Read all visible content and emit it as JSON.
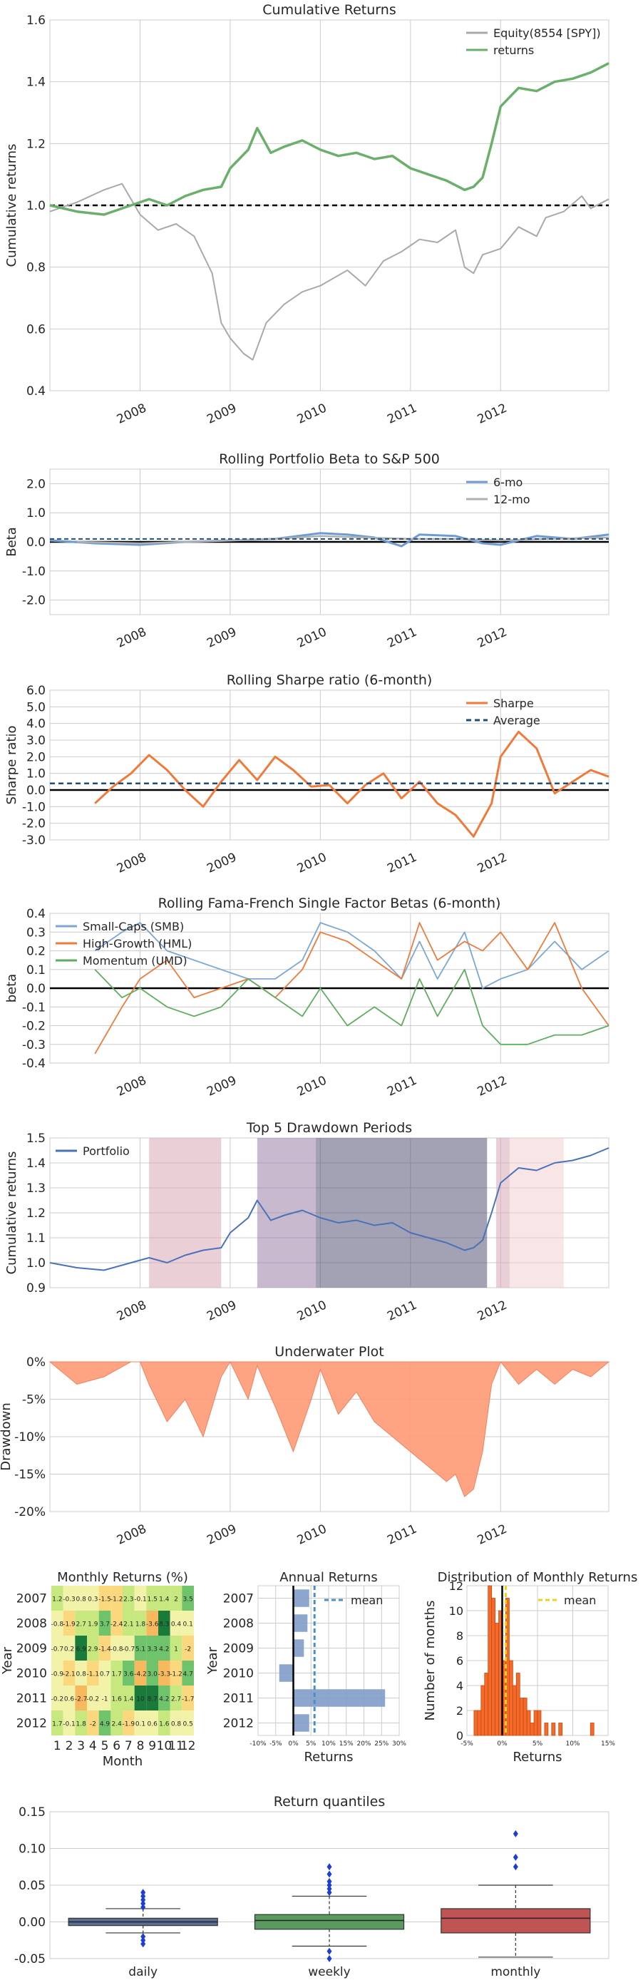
{
  "colors": {
    "equity": "#a9a9a9",
    "returns": "#6aaf6a",
    "beta6": "#6f9bd1",
    "beta12": "#b0b0b0",
    "sharpe": "#f07a3a",
    "average": "#1f4e79",
    "smb": "#7ba7d6",
    "hml": "#f07a3a",
    "umd": "#5fae5f",
    "portfolio": "#4a72b8",
    "underwater": "#ff9a76",
    "grid": "#cccccc",
    "dd1": "#d8a8b4",
    "dd2": "#9a7fa8",
    "dd3": "#555577",
    "dd4": "#d8a8b4",
    "dd5": "#f2d0d0"
  },
  "chart_data": [
    {
      "id": "cumulative",
      "type": "line",
      "title": "Cumulative Returns",
      "ylabel": "Cumulative returns",
      "ylim": [
        0.4,
        1.6
      ],
      "yticks": [
        "0.4",
        "0.6",
        "0.8",
        "1.0",
        "1.2",
        "1.4",
        "1.6"
      ],
      "xticks": [
        "2008",
        "2009",
        "2010",
        "2011",
        "2012"
      ],
      "legend": [
        "Equity(8554 [SPY])",
        "returns"
      ],
      "series": [
        {
          "name": "Equity(8554 [SPY])",
          "x": [
            2007.0,
            2007.3,
            2007.6,
            2007.8,
            2008.0,
            2008.2,
            2008.4,
            2008.6,
            2008.8,
            2008.9,
            2009.0,
            2009.15,
            2009.25,
            2009.4,
            2009.6,
            2009.8,
            2010.0,
            2010.3,
            2010.5,
            2010.7,
            2010.9,
            2011.1,
            2011.3,
            2011.5,
            2011.6,
            2011.7,
            2011.8,
            2012.0,
            2012.2,
            2012.4,
            2012.5,
            2012.7,
            2012.9,
            2013.0,
            2013.2
          ],
          "y": [
            0.98,
            1.01,
            1.05,
            1.07,
            0.97,
            0.92,
            0.94,
            0.9,
            0.78,
            0.62,
            0.57,
            0.52,
            0.5,
            0.62,
            0.68,
            0.72,
            0.74,
            0.79,
            0.74,
            0.82,
            0.85,
            0.89,
            0.88,
            0.92,
            0.8,
            0.78,
            0.84,
            0.86,
            0.93,
            0.9,
            0.96,
            0.98,
            1.03,
            0.99,
            1.02
          ]
        },
        {
          "name": "returns",
          "x": [
            2007.0,
            2007.3,
            2007.6,
            2007.9,
            2008.1,
            2008.3,
            2008.5,
            2008.7,
            2008.9,
            2009.0,
            2009.2,
            2009.3,
            2009.45,
            2009.6,
            2009.8,
            2010.0,
            2010.2,
            2010.4,
            2010.6,
            2010.8,
            2011.0,
            2011.2,
            2011.4,
            2011.6,
            2011.7,
            2011.8,
            2011.9,
            2012.0,
            2012.2,
            2012.4,
            2012.6,
            2012.8,
            2013.0,
            2013.2
          ],
          "y": [
            1.0,
            0.98,
            0.97,
            1.0,
            1.02,
            1.0,
            1.03,
            1.05,
            1.06,
            1.12,
            1.18,
            1.25,
            1.17,
            1.19,
            1.21,
            1.18,
            1.16,
            1.17,
            1.15,
            1.16,
            1.12,
            1.1,
            1.08,
            1.05,
            1.06,
            1.09,
            1.2,
            1.32,
            1.38,
            1.37,
            1.4,
            1.41,
            1.43,
            1.46
          ]
        }
      ],
      "hline": 1.0
    },
    {
      "id": "beta",
      "type": "line",
      "title": "Rolling Portfolio Beta to S&P 500",
      "ylabel": "Beta",
      "ylim": [
        -2.5,
        2.5
      ],
      "yticks": [
        "-2.0",
        "-1.0",
        "0.0",
        "1.0",
        "2.0"
      ],
      "xticks": [
        "2008",
        "2009",
        "2010",
        "2011",
        "2012"
      ],
      "legend": [
        "6-mo",
        "12-mo"
      ],
      "series": [
        {
          "name": "6-mo",
          "x": [
            2007.0,
            2007.5,
            2008.0,
            2008.5,
            2009.0,
            2009.5,
            2010.0,
            2010.3,
            2010.6,
            2010.9,
            2011.1,
            2011.5,
            2011.8,
            2012.0,
            2012.4,
            2012.8,
            2013.2
          ],
          "y": [
            0.05,
            -0.05,
            -0.1,
            0.0,
            0.05,
            0.1,
            0.3,
            0.25,
            0.15,
            -0.15,
            0.25,
            0.2,
            -0.05,
            -0.1,
            0.2,
            0.1,
            0.25
          ]
        },
        {
          "name": "12-mo",
          "x": [
            2007.3,
            2008.0,
            2008.5,
            2009.0,
            2009.5,
            2010.0,
            2010.5,
            2011.0,
            2011.5,
            2012.0,
            2012.5,
            2013.2
          ],
          "y": [
            0.0,
            -0.05,
            0.0,
            0.05,
            0.1,
            0.2,
            0.15,
            0.1,
            0.1,
            0.05,
            0.1,
            0.15
          ]
        }
      ],
      "hline": 0.0,
      "dashline": 0.1
    },
    {
      "id": "sharpe",
      "type": "line",
      "title": "Rolling Sharpe ratio (6-month)",
      "ylabel": "Sharpe ratio",
      "ylim": [
        -3.0,
        6.0
      ],
      "yticks": [
        "-3.0",
        "-2.0",
        "-1.0",
        "0.0",
        "1.0",
        "2.0",
        "3.0",
        "4.0",
        "5.0",
        "6.0"
      ],
      "xticks": [
        "2008",
        "2009",
        "2010",
        "2011",
        "2012"
      ],
      "legend": [
        "Sharpe",
        "Average"
      ],
      "series": [
        {
          "name": "Sharpe",
          "x": [
            2007.5,
            2007.7,
            2007.9,
            2008.1,
            2008.3,
            2008.5,
            2008.7,
            2008.9,
            2009.1,
            2009.3,
            2009.5,
            2009.7,
            2009.9,
            2010.1,
            2010.3,
            2010.5,
            2010.7,
            2010.9,
            2011.1,
            2011.3,
            2011.5,
            2011.7,
            2011.9,
            2012.0,
            2012.2,
            2012.4,
            2012.6,
            2012.8,
            2013.0,
            2013.2
          ],
          "y": [
            -0.8,
            0.2,
            1.0,
            2.1,
            1.2,
            0.0,
            -1.0,
            0.5,
            1.8,
            0.6,
            2.0,
            1.2,
            0.2,
            0.3,
            -0.8,
            0.3,
            1.0,
            -0.5,
            0.5,
            -0.8,
            -1.5,
            -2.8,
            -0.8,
            2.0,
            3.5,
            2.5,
            -0.2,
            0.5,
            1.2,
            0.8
          ]
        },
        {
          "name": "Average",
          "x": [
            2007.0,
            2013.2
          ],
          "y": [
            0.4,
            0.4
          ]
        }
      ],
      "hline": 0.0
    },
    {
      "id": "famafrench",
      "type": "line",
      "title": "Rolling Fama-French Single Factor Betas (6-month)",
      "ylabel": "beta",
      "ylim": [
        -0.4,
        0.4
      ],
      "yticks": [
        "-0.4",
        "-0.3",
        "-0.2",
        "-0.1",
        "0.0",
        "0.1",
        "0.2",
        "0.3",
        "0.4"
      ],
      "xticks": [
        "2008",
        "2009",
        "2010",
        "2011",
        "2012"
      ],
      "legend": [
        "Small-Caps (SMB)",
        "High-Growth (HML)",
        "Momentum (UMD)"
      ],
      "series": [
        {
          "name": "Small-Caps (SMB)",
          "x": [
            2007.5,
            2007.8,
            2008.0,
            2008.3,
            2008.6,
            2008.9,
            2009.2,
            2009.5,
            2009.8,
            2010.0,
            2010.3,
            2010.6,
            2010.9,
            2011.1,
            2011.3,
            2011.6,
            2011.8,
            2012.0,
            2012.3,
            2012.6,
            2012.9,
            2013.2
          ],
          "y": [
            0.2,
            0.3,
            0.35,
            0.2,
            0.15,
            0.1,
            0.05,
            0.05,
            0.15,
            0.35,
            0.3,
            0.2,
            0.05,
            0.25,
            0.05,
            0.3,
            0.0,
            0.05,
            0.1,
            0.25,
            0.1,
            0.2
          ]
        },
        {
          "name": "High-Growth (HML)",
          "x": [
            2007.5,
            2007.8,
            2008.0,
            2008.3,
            2008.6,
            2008.9,
            2009.2,
            2009.5,
            2009.8,
            2010.0,
            2010.3,
            2010.6,
            2010.9,
            2011.1,
            2011.3,
            2011.6,
            2011.8,
            2012.0,
            2012.3,
            2012.6,
            2012.9,
            2013.2
          ],
          "y": [
            -0.35,
            -0.1,
            0.05,
            0.15,
            -0.05,
            0.0,
            0.05,
            -0.05,
            0.1,
            0.3,
            0.25,
            0.15,
            0.05,
            0.35,
            0.15,
            0.25,
            0.2,
            0.3,
            0.1,
            0.35,
            0.0,
            -0.2
          ]
        },
        {
          "name": "Momentum (UMD)",
          "x": [
            2007.5,
            2007.8,
            2008.0,
            2008.3,
            2008.6,
            2008.9,
            2009.2,
            2009.5,
            2009.8,
            2010.0,
            2010.3,
            2010.6,
            2010.9,
            2011.1,
            2011.3,
            2011.6,
            2011.8,
            2012.0,
            2012.3,
            2012.6,
            2012.9,
            2013.2
          ],
          "y": [
            0.1,
            -0.05,
            0.0,
            -0.1,
            -0.15,
            -0.1,
            0.05,
            -0.05,
            -0.15,
            0.0,
            -0.2,
            -0.1,
            -0.2,
            0.05,
            -0.15,
            0.1,
            -0.2,
            -0.3,
            -0.3,
            -0.25,
            -0.25,
            -0.2
          ]
        }
      ],
      "hline": 0.0
    },
    {
      "id": "drawdown",
      "type": "line",
      "title": "Top 5 Drawdown Periods",
      "ylabel": "Cumulative returns",
      "ylim": [
        0.9,
        1.5
      ],
      "yticks": [
        "0.9",
        "1.0",
        "1.1",
        "1.2",
        "1.3",
        "1.4",
        "1.5"
      ],
      "xticks": [
        "2008",
        "2009",
        "2010",
        "2011",
        "2012"
      ],
      "legend": [
        "Portfolio"
      ],
      "periods": [
        [
          2008.1,
          2008.9
        ],
        [
          2009.3,
          2009.95
        ],
        [
          2009.95,
          2011.85
        ],
        [
          2011.95,
          2012.1
        ],
        [
          2012.1,
          2012.7
        ]
      ],
      "series": [
        {
          "name": "Portfolio",
          "x": [
            2007.0,
            2007.3,
            2007.6,
            2007.9,
            2008.1,
            2008.3,
            2008.5,
            2008.7,
            2008.9,
            2009.0,
            2009.2,
            2009.3,
            2009.45,
            2009.6,
            2009.8,
            2010.0,
            2010.2,
            2010.4,
            2010.6,
            2010.8,
            2011.0,
            2011.2,
            2011.4,
            2011.6,
            2011.7,
            2011.8,
            2011.9,
            2012.0,
            2012.2,
            2012.4,
            2012.6,
            2012.8,
            2013.0,
            2013.2
          ],
          "y": [
            1.0,
            0.98,
            0.97,
            1.0,
            1.02,
            1.0,
            1.03,
            1.05,
            1.06,
            1.12,
            1.18,
            1.25,
            1.17,
            1.19,
            1.21,
            1.18,
            1.16,
            1.17,
            1.15,
            1.16,
            1.12,
            1.1,
            1.08,
            1.05,
            1.06,
            1.09,
            1.2,
            1.32,
            1.38,
            1.37,
            1.4,
            1.41,
            1.43,
            1.46
          ]
        }
      ]
    },
    {
      "id": "underwater",
      "type": "area",
      "title": "Underwater Plot",
      "ylabel": "Drawdown",
      "ylim": [
        -20,
        0
      ],
      "yticks": [
        "-20%",
        "-15%",
        "-10%",
        "-5%",
        "0%"
      ],
      "xticks": [
        "2008",
        "2009",
        "2010",
        "2011",
        "2012"
      ],
      "x": [
        2007.0,
        2007.3,
        2007.6,
        2007.9,
        2008.0,
        2008.1,
        2008.3,
        2008.5,
        2008.7,
        2008.9,
        2009.0,
        2009.2,
        2009.3,
        2009.5,
        2009.7,
        2009.9,
        2010.0,
        2010.2,
        2010.4,
        2010.6,
        2010.8,
        2011.0,
        2011.2,
        2011.4,
        2011.5,
        2011.6,
        2011.7,
        2011.8,
        2011.9,
        2012.0,
        2012.2,
        2012.4,
        2012.6,
        2012.8,
        2013.0,
        2013.2
      ],
      "y": [
        0,
        -3,
        -2,
        0,
        0,
        -3,
        -8,
        -5,
        -10,
        -2,
        0,
        -5,
        -0.5,
        -6,
        -12,
        -5,
        -1,
        -7,
        -4,
        -8,
        -10,
        -12,
        -14,
        -16,
        -15,
        -18,
        -17,
        -12,
        -3,
        0,
        -3,
        -1,
        -3,
        -1,
        -2,
        0
      ]
    },
    {
      "id": "monthly",
      "type": "heatmap",
      "title": "Monthly Returns (%)",
      "xlabel": "Month",
      "ylabel": "Year",
      "xticks": [
        "1",
        "2",
        "3",
        "4",
        "5",
        "6",
        "7",
        "8",
        "9",
        "10",
        "11",
        "12"
      ],
      "yticks": [
        "2007",
        "2008",
        "2009",
        "2010",
        "2011",
        "2012"
      ],
      "values": [
        [
          "1.2",
          "-0.3",
          "0.8",
          "0.3",
          "-1.5",
          "-1.2",
          "2.3",
          "-0.1",
          "1.5",
          "1.4",
          "2",
          "3.5"
        ],
        [
          "-0.8",
          "-1.9",
          "2.7",
          "1.9",
          "3.7",
          "-2.4",
          "2.1",
          "1.8",
          "-3.6",
          "8.3",
          "0.4",
          "0.1"
        ],
        [
          "-0.7",
          "0.2",
          "6.9",
          "2.9",
          "-1.4",
          "-0.8",
          "-0.7",
          "5.1",
          "3.3",
          "4.2",
          "1",
          "-2"
        ],
        [
          "-0.9",
          "-2.1",
          "0.8",
          "-1.1",
          "0.7",
          "1.7",
          "3.6",
          "-4.2",
          "3.0",
          "-3.3",
          "-1.2",
          "4.7"
        ],
        [
          "-0.2",
          "0.6",
          "-2.7",
          "-0.2",
          "-1",
          "1.6",
          "1.4",
          "10",
          "8.7",
          "4.2",
          "2.7",
          "-1.7"
        ],
        [
          "1.7",
          "-0.1",
          "1.8",
          "-2",
          "4.9",
          "2.4",
          "-1.9",
          "0.1",
          "0.6",
          "1.6",
          "0.8",
          "0.5"
        ]
      ]
    },
    {
      "id": "annual",
      "type": "bar",
      "title": "Annual Returns",
      "xlabel": "Returns",
      "ylabel": "Year",
      "categories": [
        "2007",
        "2008",
        "2009",
        "2010",
        "2011",
        "2012"
      ],
      "values": [
        4.5,
        4.0,
        3.0,
        -4.0,
        26.0,
        4.5
      ],
      "mean": 6.0,
      "xlim": [
        -10,
        30
      ],
      "xticks": [
        "-10%",
        "-5%",
        "0%",
        "5%",
        "10%",
        "15%",
        "20%",
        "25%",
        "30%"
      ],
      "legend": [
        "mean"
      ]
    },
    {
      "id": "distribution",
      "type": "bar",
      "title": "Distribution of Monthly Returns",
      "xlabel": "Returns",
      "ylabel": "Number of months",
      "xlim": [
        -5,
        15
      ],
      "ylim": [
        0,
        12
      ],
      "xticks": [
        "-5%",
        "0%",
        "5%",
        "10%",
        "15%"
      ],
      "yticks": [
        "0",
        "2",
        "4",
        "6",
        "8",
        "10",
        "12"
      ],
      "bins": [
        -4,
        -3.5,
        -3,
        -2.5,
        -2,
        -1.5,
        -1,
        -0.5,
        0,
        0.5,
        1,
        1.5,
        2,
        2.5,
        3,
        3.5,
        4,
        4.5,
        5,
        5.5,
        6,
        6.5,
        7,
        7.5,
        8,
        8.5,
        9,
        9.5,
        10,
        10.5,
        11,
        11.5,
        12,
        12.5,
        13
      ],
      "counts": [
        2,
        2,
        4,
        5,
        12,
        11,
        9,
        10,
        6,
        11,
        6,
        4,
        5,
        3,
        3,
        2,
        1,
        2,
        2,
        0,
        1,
        0,
        1,
        0,
        1,
        0,
        0,
        0,
        0,
        0,
        0,
        0,
        0,
        1,
        0
      ],
      "mean": 0.5,
      "legend": [
        "mean"
      ]
    },
    {
      "id": "quantiles",
      "type": "box",
      "title": "Return quantiles",
      "categories": [
        "daily",
        "weekly",
        "monthly"
      ],
      "ylim": [
        -0.05,
        0.15
      ],
      "yticks": [
        "-0.05",
        "0.00",
        "0.05",
        "0.10",
        "0.15"
      ],
      "boxes": [
        {
          "q1": -0.005,
          "med": 0.0,
          "q3": 0.005,
          "lo": -0.015,
          "hi": 0.018,
          "outliers": [
            0.02,
            0.025,
            0.03,
            0.035,
            0.04,
            -0.02,
            -0.025,
            -0.03
          ]
        },
        {
          "q1": -0.01,
          "med": 0.002,
          "q3": 0.01,
          "lo": -0.033,
          "hi": 0.035,
          "outliers": [
            0.04,
            0.045,
            0.05,
            0.055,
            0.065,
            0.075,
            -0.04,
            -0.05
          ]
        },
        {
          "q1": -0.015,
          "med": 0.005,
          "q3": 0.018,
          "lo": -0.048,
          "hi": 0.05,
          "outliers": [
            0.075,
            0.088,
            0.12
          ]
        }
      ]
    }
  ]
}
